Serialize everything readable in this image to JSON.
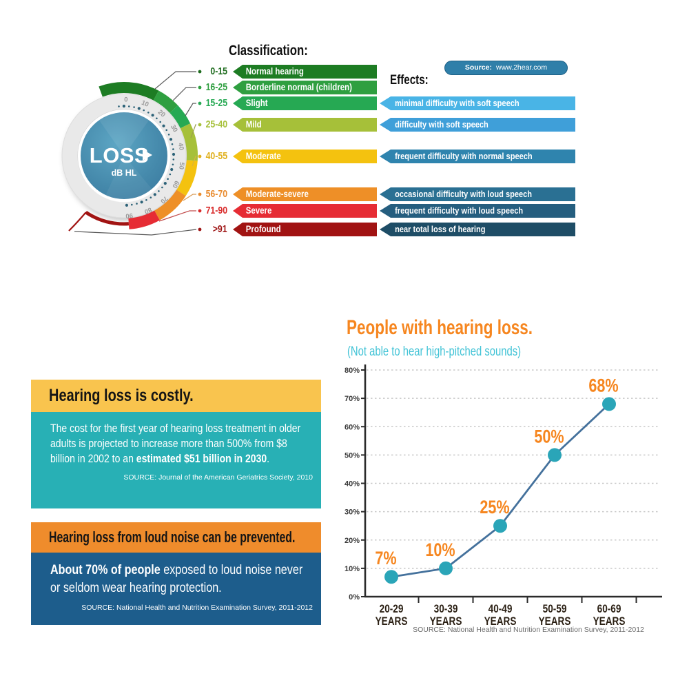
{
  "source_pill": {
    "label": "Source:",
    "value": "www.2hear.com"
  },
  "classification": {
    "title": "Classification:",
    "gauge": {
      "center_label": "LOSS",
      "center_sublabel": "dB HL",
      "tick_labels": [
        "0",
        "10",
        "20",
        "30",
        "40",
        "50",
        "60",
        "70",
        "80",
        "90"
      ]
    },
    "rows": [
      {
        "range": "0-15",
        "label": "Normal hearing",
        "bar_color": "#1d7c23",
        "text_color": "#1d6b1d"
      },
      {
        "range": "16-25",
        "label": "Borderline normal (children)",
        "bar_color": "#2f9f40",
        "text_color": "#2f9f40"
      },
      {
        "range": "15-25",
        "label": "Slight",
        "bar_color": "#26a953",
        "text_color": "#26a953"
      },
      {
        "range": "25-40",
        "label": "Mild",
        "bar_color": "#a6c039",
        "text_color": "#a6c039"
      },
      {
        "range": "40-55",
        "label": "Moderate",
        "bar_color": "#f4c20f",
        "text_color": "#e0b01c"
      },
      {
        "range": "56-70",
        "label": "Moderate-severe",
        "bar_color": "#ee8f27",
        "text_color": "#e98b2e"
      },
      {
        "range": "71-90",
        "label": "Severe",
        "bar_color": "#e62c34",
        "text_color": "#d92b2b"
      },
      {
        "range": ">91",
        "label": "Profound",
        "bar_color": "#a11312",
        "text_color": "#9e1414"
      }
    ]
  },
  "effects": {
    "title": "Effects:",
    "items": [
      {
        "row": 2,
        "text": "minimal difficulty with soft speech",
        "color": "#49b4e6"
      },
      {
        "row": 3,
        "text": "difficulty with soft speech",
        "color": "#3f9fd9"
      },
      {
        "row": 4,
        "text": "frequent difficulty with normal speech",
        "color": "#2f84ae"
      },
      {
        "row": 5,
        "text": "occasional difficulty with loud speech",
        "color": "#2a7093"
      },
      {
        "row": 6,
        "text": "frequent difficulty with loud speech",
        "color": "#255e7f"
      },
      {
        "row": 7,
        "text": "near total loss of hearing",
        "color": "#1e4d66"
      }
    ]
  },
  "cards": [
    {
      "header": "Hearing loss is costly.",
      "header_bg": "#f9c44e",
      "body_bg": "#28b0b5",
      "body_lead": "The cost for the first year of hearing loss treatment in older adults is projected to increase more than 500% from $8 billion in 2002 to an ",
      "body_bold": "estimated $51 billion in 2030",
      "body_tail": ".",
      "source": "SOURCE:  Journal of the American Geriatrics Society, 2010"
    },
    {
      "header": "Hearing loss from loud noise can be prevented.",
      "header_bg": "#ef8c2c",
      "body_bg": "#1d5d8c",
      "body_bold": "About 70% of people",
      "body_tail": " exposed to loud noise never or seldom wear hearing protection.",
      "source": "SOURCE: National Health and Nutrition Examination Survey, 2011-2012"
    }
  ],
  "chart_data": {
    "type": "line",
    "title": "People with hearing loss.",
    "subtitle": "(Not able to hear high-pitched sounds)",
    "categories": [
      "20-29 YEARS",
      "30-39 YEARS",
      "40-49 YEARS",
      "50-59 YEARS",
      "60-69 YEARS"
    ],
    "values": [
      7,
      10,
      25,
      50,
      68
    ],
    "point_labels": [
      "7%",
      "10%",
      "25%",
      "50%",
      "68%"
    ],
    "yticks": [
      0,
      10,
      20,
      30,
      40,
      50,
      60,
      70,
      80
    ],
    "ytick_suffix": "%",
    "ylim": [
      0,
      80
    ],
    "grid": "dotted horizontal",
    "line_color": "#44719c",
    "marker_color": "#2aa5b8",
    "label_color": "#f6861f",
    "source": "SOURCE: National Health and Nutrition Examination Survey, 2011-2012"
  }
}
